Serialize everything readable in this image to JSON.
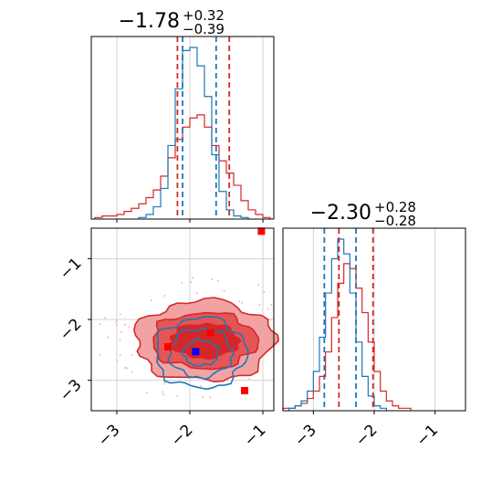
{
  "chart_data": {
    "type": "corner",
    "panels": [
      {
        "id": "hist-param1",
        "kind": "histogram",
        "title": {
          "median": "−1.78",
          "plus": "+0.32",
          "minus": "−0.39"
        },
        "xlim": [
          -3.35,
          -0.85
        ],
        "grid": true,
        "series": [
          {
            "color": "#d62728",
            "x": [
              -3.25,
              -3.15,
              -3.05,
              -2.95,
              -2.85,
              -2.75,
              -2.65,
              -2.55,
              -2.45,
              -2.35,
              -2.25,
              -2.15,
              -2.05,
              -1.95,
              -1.85,
              -1.75,
              -1.65,
              -1.55,
              -1.45,
              -1.35,
              -1.25,
              -1.15,
              -1.05,
              -0.95
            ],
            "y": [
              1,
              2,
              2,
              3,
              5,
              7,
              10,
              14,
              19,
              28,
              40,
              52,
              60,
              66,
              68,
              60,
              48,
              38,
              30,
              22,
              12,
              6,
              3,
              1
            ]
          },
          {
            "color": "#1f77b4",
            "x": [
              -2.65,
              -2.55,
              -2.45,
              -2.35,
              -2.25,
              -2.15,
              -2.05,
              -1.95,
              -1.85,
              -1.75,
              -1.65,
              -1.55,
              -1.45,
              -1.35,
              -1.25
            ],
            "y": [
              1,
              3,
              8,
              20,
              48,
              85,
              110,
              112,
              100,
              80,
              42,
              18,
              6,
              2,
              1
            ]
          }
        ],
        "quantile_lines": [
          {
            "color": "#d62728",
            "x": [
              -2.17,
              -1.46
            ]
          },
          {
            "color": "#1f77b4",
            "x": [
              -2.1,
              -1.64
            ]
          }
        ]
      },
      {
        "id": "joint-2d",
        "kind": "contour",
        "xlim": [
          -3.35,
          -0.85
        ],
        "ylim": [
          -3.5,
          -0.5
        ],
        "xticks": [
          -3,
          -2,
          -1
        ],
        "yticks": [
          -1,
          -2,
          -3
        ],
        "grid": true,
        "series": [
          {
            "color": "#d62728",
            "center": [
              -1.8,
              -2.35
            ],
            "levels": [
              {
                "rx": 0.95,
                "ry": 0.66,
                "fill": "#f1a3a3"
              },
              {
                "rx": 0.72,
                "ry": 0.46,
                "fill": "#e45656"
              },
              {
                "rx": 0.47,
                "ry": 0.28,
                "fill": "#d62728"
              }
            ]
          },
          {
            "color": "#1f77b4",
            "center": [
              -1.85,
              -2.55
            ],
            "levels": [
              {
                "rx": 0.62,
                "ry": 0.58
              },
              {
                "rx": 0.43,
                "ry": 0.4
              },
              {
                "rx": 0.24,
                "ry": 0.21
              }
            ]
          }
        ],
        "markers": [
          {
            "color": "#ff0000",
            "x": -2.3,
            "y": -2.45
          },
          {
            "color": "#ff0000",
            "x": -1.72,
            "y": -2.22
          },
          {
            "color": "#ff0000",
            "x": -1.25,
            "y": -3.17
          },
          {
            "color": "#ff0000",
            "x": -1.02,
            "y": -0.55
          },
          {
            "color": "#0000ff",
            "x": -1.92,
            "y": -2.53
          }
        ]
      },
      {
        "id": "hist-param2",
        "kind": "histogram",
        "title": {
          "median": "−2.30",
          "plus": "+0.28",
          "minus": "−0.28"
        },
        "xlim": [
          -3.5,
          -0.5
        ],
        "xticks": [
          -3,
          -2,
          -1
        ],
        "grid": true,
        "series": [
          {
            "color": "#d62728",
            "x": [
              -3.45,
              -3.35,
              -3.25,
              -3.15,
              -3.05,
              -2.95,
              -2.85,
              -2.75,
              -2.65,
              -2.55,
              -2.45,
              -2.35,
              -2.25,
              -2.15,
              -2.05,
              -1.95,
              -1.85,
              -1.75,
              -1.65,
              -1.55,
              -1.45
            ],
            "y": [
              1,
              1,
              2,
              3,
              5,
              8,
              14,
              24,
              38,
              52,
              60,
              58,
              50,
              40,
              28,
              16,
              8,
              4,
              2,
              1,
              1
            ]
          },
          {
            "color": "#1f77b4",
            "x": [
              -3.35,
              -3.25,
              -3.15,
              -3.05,
              -2.95,
              -2.85,
              -2.75,
              -2.65,
              -2.55,
              -2.45,
              -2.35,
              -2.25,
              -2.15,
              -2.05,
              -1.95,
              -1.85
            ],
            "y": [
              1,
              2,
              4,
              8,
              16,
              30,
              48,
              62,
              70,
              64,
              48,
              28,
              14,
              6,
              2,
              1
            ]
          }
        ],
        "quantile_lines": [
          {
            "color": "#d62728",
            "x": [
              -2.58,
              -2.02
            ]
          },
          {
            "color": "#1f77b4",
            "x": [
              -2.82,
              -2.3
            ]
          }
        ]
      }
    ]
  }
}
